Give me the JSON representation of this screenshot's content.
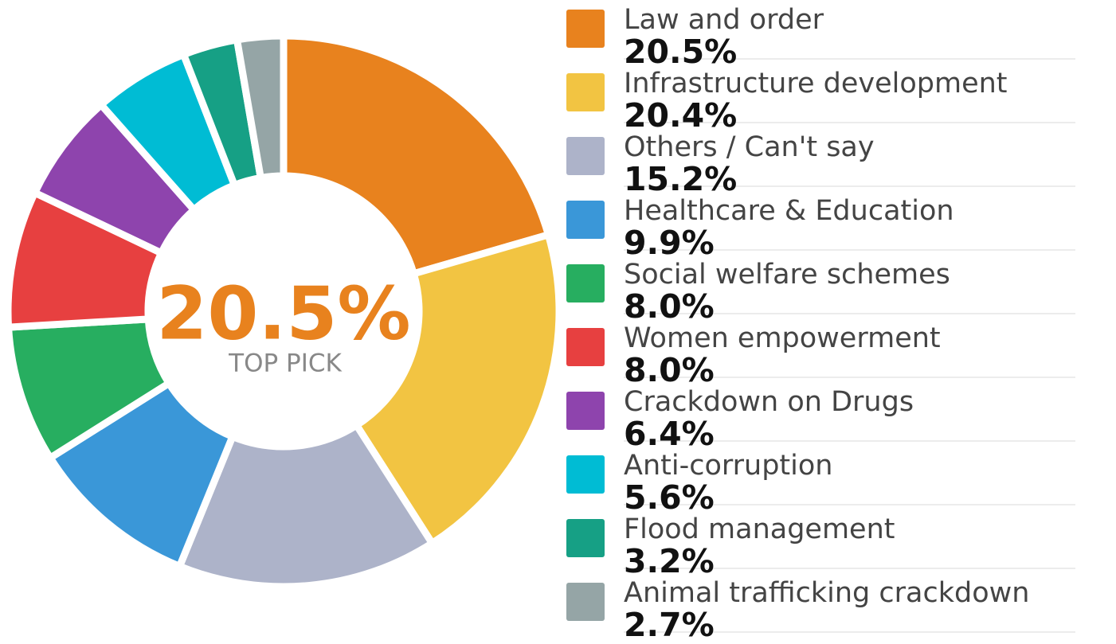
{
  "chart_data": {
    "type": "donut",
    "center_label": "TOP PICK",
    "categories": [
      "Law and order",
      "Infrastructure development",
      "Others / Can't say",
      "Healthcare & Education",
      "Social welfare schemes",
      "Women empowerment",
      "Crackdown on Drugs",
      "Anti-corruption",
      "Flood management",
      "Animal trafficking crackdown"
    ],
    "values": [
      20.5,
      20.4,
      15.2,
      9.9,
      8.0,
      8.0,
      6.4,
      5.6,
      3.2,
      2.7
    ],
    "value_labels": [
      "20.5%",
      "20.4%",
      "15.2%",
      "9.9%",
      "8.0%",
      "8.0%",
      "6.4%",
      "5.6%",
      "3.2%",
      "2.7%"
    ],
    "colors": [
      "#e8821e",
      "#f2c442",
      "#adb3c9",
      "#3a97d8",
      "#27ae60",
      "#e74040",
      "#8e44ad",
      "#00bcd4",
      "#16a085",
      "#95a5a6"
    ],
    "legend": "right"
  }
}
